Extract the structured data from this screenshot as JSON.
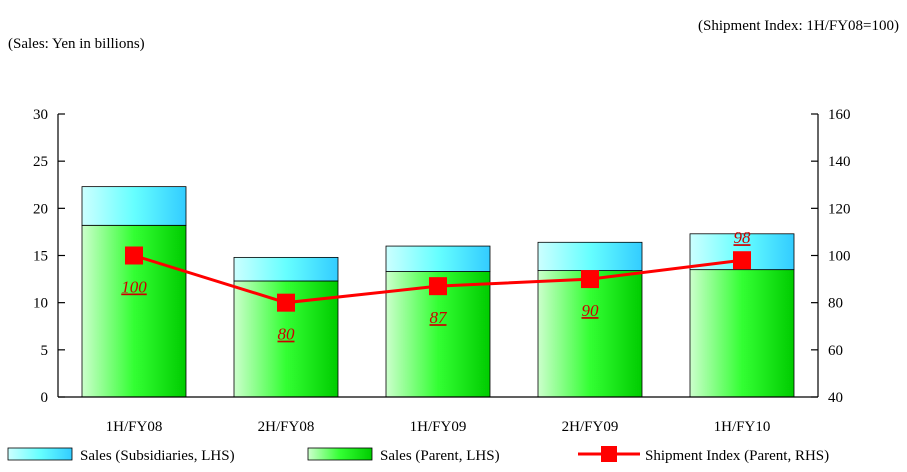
{
  "notes": {
    "left": "(Sales: Yen in billions)",
    "right": "(Shipment Index: 1H/FY08=100)"
  },
  "chart_data": {
    "type": "bar",
    "stacked": true,
    "categories": [
      "1H/FY08",
      "2H/FY08",
      "1H/FY09",
      "2H/FY09",
      "1H/FY10"
    ],
    "y_left": {
      "min": 0,
      "max": 30,
      "ticks": [
        0,
        5,
        10,
        15,
        20,
        25,
        30
      ]
    },
    "y_right": {
      "min": 40,
      "max": 160,
      "ticks": [
        40,
        60,
        80,
        100,
        120,
        140,
        160
      ]
    },
    "series": [
      {
        "name": "Sales (Parent, LHS)",
        "type": "bar",
        "axis": "left",
        "values": [
          18.2,
          12.3,
          13.3,
          13.4,
          13.5
        ],
        "color": "#33ff33"
      },
      {
        "name": "Sales (Subsidiaries, LHS)",
        "type": "bar",
        "axis": "left",
        "values": [
          4.1,
          2.5,
          2.7,
          3.0,
          3.8
        ],
        "color": "#66ffff"
      },
      {
        "name": "Shipment Index (Parent, RHS)",
        "type": "line",
        "axis": "right",
        "values": [
          100,
          80,
          87,
          90,
          98
        ],
        "labels": [
          "100",
          "80",
          "87",
          "90",
          "98"
        ],
        "color": "#ff0000",
        "label_color": "#cc0000"
      }
    ],
    "legend": [
      "Sales (Subsidiaries, LHS)",
      "Sales (Parent, LHS)",
      "Shipment Index (Parent, RHS)"
    ],
    "legend_position": "bottom",
    "grid": false
  }
}
